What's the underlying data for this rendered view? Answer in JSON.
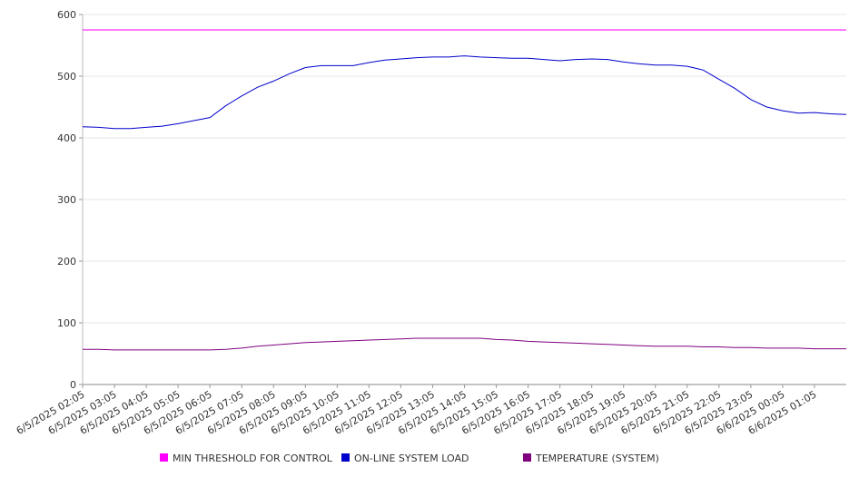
{
  "chart_data": {
    "type": "line",
    "title": "",
    "xlabel": "",
    "ylabel": "",
    "ylim": [
      0,
      600
    ],
    "yticks": [
      0,
      100,
      200,
      300,
      400,
      500,
      600
    ],
    "grid": true,
    "legend_position": "bottom",
    "x_tick_labels": [
      "6/5/2025 02:05",
      "6/5/2025 03:05",
      "6/5/2025 04:05",
      "6/5/2025 05:05",
      "6/5/2025 06:05",
      "6/5/2025 07:05",
      "6/5/2025 08:05",
      "6/5/2025 09:05",
      "6/5/2025 10:05",
      "6/5/2025 11:05",
      "6/5/2025 12:05",
      "6/5/2025 13:05",
      "6/5/2025 14:05",
      "6/5/2025 15:05",
      "6/5/2025 16:05",
      "6/5/2025 17:05",
      "6/5/2025 18:05",
      "6/5/2025 19:05",
      "6/5/2025 20:05",
      "6/5/2025 21:05",
      "6/5/2025 22:05",
      "6/5/2025 23:05",
      "6/6/2025 00:05",
      "6/6/2025 01:05"
    ],
    "x": [
      "6/5/2025 02:05",
      "6/5/2025 02:35",
      "6/5/2025 03:05",
      "6/5/2025 03:35",
      "6/5/2025 04:05",
      "6/5/2025 04:35",
      "6/5/2025 05:05",
      "6/5/2025 05:35",
      "6/5/2025 06:05",
      "6/5/2025 06:35",
      "6/5/2025 07:05",
      "6/5/2025 07:35",
      "6/5/2025 08:05",
      "6/5/2025 08:35",
      "6/5/2025 09:05",
      "6/5/2025 09:35",
      "6/5/2025 10:05",
      "6/5/2025 10:35",
      "6/5/2025 11:05",
      "6/5/2025 11:35",
      "6/5/2025 12:05",
      "6/5/2025 12:35",
      "6/5/2025 13:05",
      "6/5/2025 13:35",
      "6/5/2025 14:05",
      "6/5/2025 14:35",
      "6/5/2025 15:05",
      "6/5/2025 15:35",
      "6/5/2025 16:05",
      "6/5/2025 16:35",
      "6/5/2025 17:05",
      "6/5/2025 17:35",
      "6/5/2025 18:05",
      "6/5/2025 18:35",
      "6/5/2025 19:05",
      "6/5/2025 19:35",
      "6/5/2025 20:05",
      "6/5/2025 20:35",
      "6/5/2025 21:05",
      "6/5/2025 21:35",
      "6/5/2025 22:05",
      "6/5/2025 22:35",
      "6/5/2025 23:05",
      "6/5/2025 23:35",
      "6/6/2025 00:05",
      "6/6/2025 00:35",
      "6/6/2025 01:05",
      "6/6/2025 01:35",
      "6/6/2025 02:05"
    ],
    "series": [
      {
        "name": "MIN THRESHOLD FOR CONTROL",
        "color": "#ff00ff",
        "values": [
          575,
          575,
          575,
          575,
          575,
          575,
          575,
          575,
          575,
          575,
          575,
          575,
          575,
          575,
          575,
          575,
          575,
          575,
          575,
          575,
          575,
          575,
          575,
          575,
          575,
          575,
          575,
          575,
          575,
          575,
          575,
          575,
          575,
          575,
          575,
          575,
          575,
          575,
          575,
          575,
          575,
          575,
          575,
          575,
          575,
          575,
          575,
          575,
          575
        ]
      },
      {
        "name": "ON-LINE SYSTEM LOAD",
        "color": "#0000cc",
        "values": [
          418,
          417,
          415,
          415,
          417,
          419,
          423,
          428,
          433,
          452,
          468,
          482,
          492,
          504,
          514,
          517,
          517,
          517,
          522,
          526,
          528,
          530,
          531,
          531,
          533,
          531,
          530,
          529,
          529,
          527,
          525,
          527,
          528,
          527,
          523,
          520,
          518,
          518,
          516,
          510,
          495,
          480,
          462,
          450,
          444,
          440,
          441,
          439,
          438
        ]
      },
      {
        "name": "TEMPERATURE (SYSTEM)",
        "color": "#800080",
        "values": [
          57,
          57,
          56,
          56,
          56,
          56,
          56,
          56,
          56,
          57,
          59,
          62,
          64,
          66,
          68,
          69,
          70,
          71,
          72,
          73,
          74,
          75,
          75,
          75,
          75,
          75,
          73,
          72,
          70,
          69,
          68,
          67,
          66,
          65,
          64,
          63,
          62,
          62,
          62,
          61,
          61,
          60,
          60,
          59,
          59,
          59,
          58,
          58,
          58
        ]
      }
    ]
  }
}
